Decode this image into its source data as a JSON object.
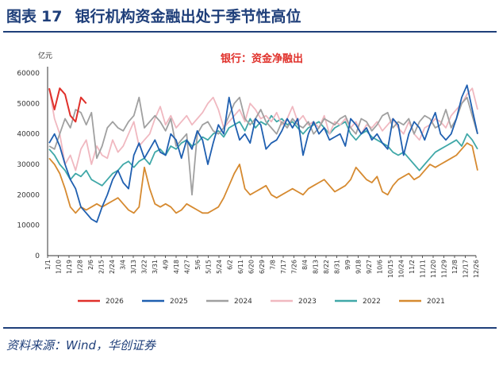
{
  "figure": {
    "label": "图表",
    "number": "17",
    "title": "银行机构资金融出处于季节性高位",
    "source": "资料来源：Wind，华创证券"
  },
  "chart_data": {
    "type": "line",
    "title": "银行：资金净融出",
    "ylabel": "亿元",
    "xlabel": "",
    "ylim": [
      0,
      60000
    ],
    "yticks": [
      0,
      10000,
      20000,
      30000,
      40000,
      50000,
      60000
    ],
    "xticks": [
      "1/1",
      "1/10",
      "1/19",
      "1/28",
      "2/6",
      "2/15",
      "2/24",
      "3/4",
      "3/13",
      "3/22",
      "3/31",
      "4/9",
      "4/18",
      "4/27",
      "5/6",
      "5/15",
      "5/24",
      "6/2",
      "6/11",
      "6/20",
      "6/29",
      "7/8",
      "7/17",
      "7/26",
      "8/4",
      "8/13",
      "8/22",
      "8/31",
      "9/9",
      "9/18",
      "9/27",
      "10/6",
      "10/15",
      "10/24",
      "11/2",
      "11/11",
      "11/20",
      "11/29",
      "12/8",
      "12/17",
      "12/26"
    ],
    "legend_position": "bottom",
    "series": [
      {
        "name": "2026",
        "color": "#e0302a",
        "values": [
          55000,
          48000,
          55000,
          53000,
          46000,
          44000,
          52000,
          50000
        ]
      },
      {
        "name": "2025",
        "color": "#1f5fb0",
        "values": [
          37000,
          40000,
          36000,
          30000,
          25000,
          22000,
          16000,
          14000,
          12000,
          11000,
          16000,
          20000,
          25000,
          28000,
          24000,
          22000,
          33000,
          37000,
          32000,
          35000,
          38000,
          34000,
          33000,
          40000,
          38000,
          32000,
          38000,
          35000,
          41000,
          38000,
          30000,
          37000,
          43000,
          40000,
          52000,
          44000,
          38000,
          40000,
          37000,
          45000,
          43000,
          35000,
          37000,
          38000,
          41000,
          45000,
          42000,
          45000,
          33000,
          40000,
          44000,
          40000,
          42000,
          38000,
          39000,
          40000,
          36000,
          45000,
          43000,
          40000,
          42000,
          38000,
          40000,
          37000,
          35000,
          45000,
          43000,
          33000,
          40000,
          44000,
          42000,
          38000,
          43000,
          47000,
          40000,
          38000,
          40000,
          45000,
          52000,
          56000,
          48000,
          40000
        ]
      },
      {
        "name": "2024",
        "color": "#a0a0a0",
        "values": [
          36000,
          35000,
          40000,
          45000,
          42000,
          48000,
          47000,
          43000,
          47000,
          32000,
          36000,
          42000,
          44000,
          42000,
          41000,
          44000,
          46000,
          52000,
          42000,
          44000,
          46000,
          44000,
          41000,
          45000,
          36000,
          38000,
          40000,
          20000,
          40000,
          43000,
          44000,
          41000,
          40000,
          42000,
          46000,
          50000,
          52000,
          45000,
          43000,
          45000,
          48000,
          44000,
          42000,
          40000,
          44000,
          42000,
          45000,
          43000,
          42000,
          44000,
          40000,
          42000,
          45000,
          44000,
          43000,
          45000,
          46000,
          42000,
          40000,
          45000,
          44000,
          41000,
          43000,
          46000,
          47000,
          42000,
          44000,
          43000,
          45000,
          40000,
          44000,
          46000,
          45000,
          42000,
          43000,
          48000,
          42000,
          45000,
          50000,
          52000,
          46000,
          40000
        ]
      },
      {
        "name": "2023",
        "color": "#f0b8c0",
        "values": [
          55000,
          45000,
          40000,
          30000,
          33000,
          28000,
          35000,
          38000,
          30000,
          36000,
          33000,
          32000,
          38000,
          34000,
          36000,
          40000,
          44000,
          36000,
          38000,
          40000,
          45000,
          49000,
          43000,
          46000,
          42000,
          44000,
          46000,
          43000,
          45000,
          47000,
          50000,
          52000,
          48000,
          42000,
          44000,
          46000,
          48000,
          44000,
          50000,
          48000,
          45000,
          46000,
          44000,
          47000,
          43000,
          45000,
          49000,
          44000,
          46000,
          43000,
          44000,
          42000,
          46000,
          40000,
          44000,
          43000,
          45000,
          42000,
          44000,
          40000,
          43000,
          42000,
          44000,
          41000,
          43000,
          45000,
          42000,
          40000,
          44000,
          40000,
          38000,
          42000,
          43000,
          45000,
          44000,
          42000,
          46000,
          48000,
          50000,
          53000,
          55000,
          48000
        ]
      },
      {
        "name": "2022",
        "color": "#40a8a8",
        "values": [
          35000,
          33000,
          30000,
          28000,
          25000,
          27000,
          26000,
          28000,
          25000,
          24000,
          23000,
          25000,
          27000,
          28000,
          30000,
          31000,
          29000,
          31000,
          32000,
          30000,
          34000,
          35000,
          33000,
          36000,
          35000,
          37000,
          38000,
          36000,
          37000,
          39000,
          38000,
          40000,
          41000,
          39000,
          42000,
          43000,
          44000,
          41000,
          45000,
          42000,
          44000,
          43000,
          46000,
          44000,
          45000,
          43000,
          44000,
          42000,
          40000,
          42000,
          43000,
          44000,
          42000,
          40000,
          42000,
          43000,
          44000,
          40000,
          38000,
          40000,
          41000,
          39000,
          38000,
          37000,
          36000,
          34000,
          33000,
          34000,
          32000,
          30000,
          28000,
          30000,
          32000,
          34000,
          35000,
          36000,
          37000,
          38000,
          36000,
          40000,
          38000,
          35000
        ]
      },
      {
        "name": "2021",
        "color": "#d68a30",
        "values": [
          32000,
          30000,
          27000,
          22000,
          16000,
          14000,
          16000,
          15000,
          16000,
          17000,
          16000,
          17000,
          18000,
          19000,
          17000,
          15000,
          14000,
          16000,
          29000,
          22000,
          17000,
          16000,
          17000,
          16000,
          14000,
          15000,
          17000,
          16000,
          15000,
          14000,
          14000,
          15000,
          16000,
          19000,
          23000,
          27000,
          30000,
          22000,
          20000,
          21000,
          22000,
          23000,
          20000,
          19000,
          20000,
          21000,
          22000,
          21000,
          20000,
          22000,
          23000,
          24000,
          25000,
          23000,
          21000,
          22000,
          23000,
          25000,
          29000,
          27000,
          25000,
          24000,
          26000,
          21000,
          20000,
          23000,
          25000,
          26000,
          27000,
          25000,
          26000,
          28000,
          30000,
          29000,
          30000,
          31000,
          32000,
          33000,
          35000,
          37000,
          36000,
          28000
        ]
      }
    ]
  }
}
